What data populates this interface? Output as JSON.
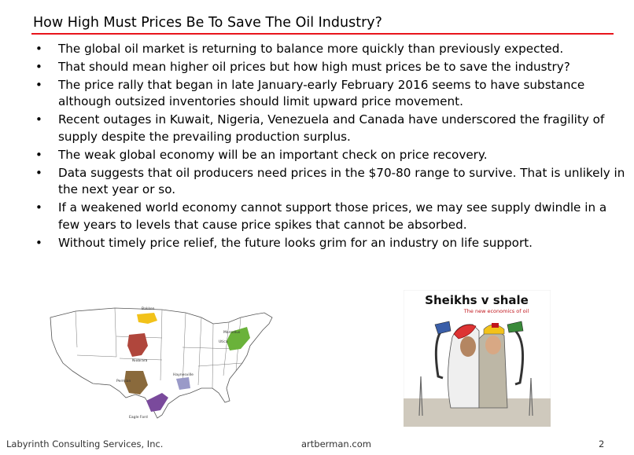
{
  "slide": {
    "title": "How High Must Prices Be To Save The Oil Industry?",
    "accent_color": "#e8141b",
    "bullets": [
      "The global oil market is returning to balance more quickly than previously expected.",
      "That should mean higher oil prices but how high must prices be to save the industry?",
      "The price rally that began in late January-early February 2016 seems to have substance although outsized inventories should limit upward price movement.",
      "Recent outages in Kuwait, Nigeria, Venezuela and Canada have underscored the fragility of supply despite the prevailing production surplus.",
      "The weak global economy will be an important check on price recovery.",
      "Data suggests that oil producers need prices in the $70-80 range to survive. That is unlikely in the next year or so.",
      "If a weakened world economy cannot support those prices, we may see supply dwindle in a few years to levels that cause price spikes that cannot be absorbed.",
      "Without timely price relief, the future looks grim for an industry on life support."
    ],
    "bullet_symbol": "•"
  },
  "map": {
    "labels": [
      "Bakken",
      "Niobrara",
      "Permian",
      "Eagle Ford",
      "Haynesville",
      "Marcellus",
      "Utica"
    ]
  },
  "cover": {
    "headline": "Sheikhs v shale",
    "subhead": "The new economics of oil"
  },
  "footer": {
    "company": "Labyrinth Consulting Services, Inc.",
    "site": "artberman.com",
    "page": "2"
  }
}
